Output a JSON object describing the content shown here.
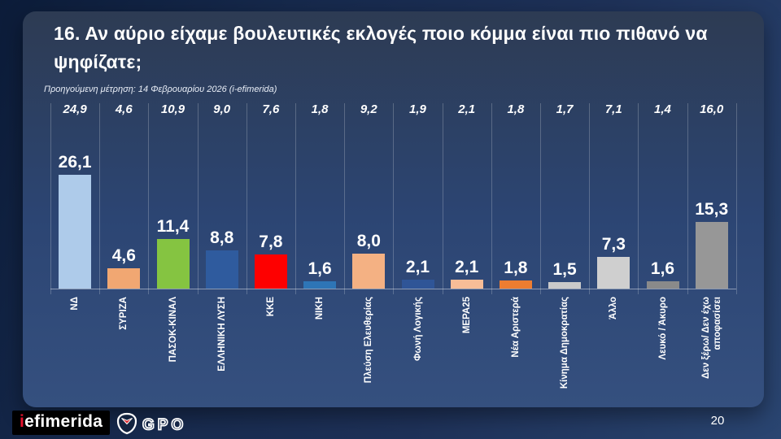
{
  "slide": {
    "title": "16. Αν αύριο είχαμε βουλευτικές εκλογές ποιο κόμμα είναι πιο πιθανό να ψηφίζατε;",
    "subtitle": "Προηγούμενη μέτρηση: 14 Φεβρουαρίου 2026 (i-efimerida)",
    "page_number": "20"
  },
  "footer": {
    "iefimerida_i": "i",
    "iefimerida_rest": "efimerida",
    "gpo_text": "GPO"
  },
  "chart_data": {
    "type": "bar",
    "title": "16. Αν αύριο είχαμε βουλευτικές εκλογές ποιο κόμμα είναι πιο πιθανό να ψηφίζατε;",
    "categories": [
      "ΝΔ",
      "ΣΥΡΙΖΑ",
      "ΠΑΣΟΚ-ΚΙΝΑΛ",
      "ΕΛΛΗΝΙΚΗ ΛΥΣΗ",
      "ΚΚΕ",
      "ΝΙΚΗ",
      "Πλεύση Ελευθερίας",
      "Φωνή Λογικής",
      "ΜΕΡΑ25",
      "Νέα Αριστερά",
      "Κίνημα Δημοκρατίας",
      "Άλλο",
      "Λευκό / Άκυρο",
      "Δεν ξέρω/ Δεν έχω αποφασίσει"
    ],
    "series": [
      {
        "name": "previous",
        "label": "Προηγούμενη μέτρηση: 14 Φεβρουαρίου 2026 (i-efimerida)",
        "values": [
          24.9,
          4.6,
          10.9,
          9.0,
          7.6,
          1.8,
          9.2,
          1.9,
          2.1,
          1.8,
          1.7,
          7.1,
          1.4,
          16.0
        ]
      },
      {
        "name": "current",
        "values": [
          26.1,
          4.6,
          11.4,
          8.8,
          7.8,
          1.6,
          8.0,
          2.1,
          2.1,
          1.8,
          1.5,
          7.3,
          1.6,
          15.3
        ]
      }
    ],
    "bar_colors": [
      "#aecbea",
      "#f1a772",
      "#85c441",
      "#2f5b9e",
      "#fe0000",
      "#2e75b6",
      "#f4b183",
      "#2f5597",
      "#f7bd97",
      "#ed7d31",
      "#cacaca",
      "#cfcfcf",
      "#8a8a8a",
      "#979797"
    ],
    "ylim": [
      0,
      28
    ],
    "grid": "vertical-column-separators",
    "legend": "none",
    "decimal_separator": ",",
    "accent_colors": {
      "background_card": "#2c4573",
      "background_page": "#16294c",
      "text": "#ffffff"
    }
  }
}
